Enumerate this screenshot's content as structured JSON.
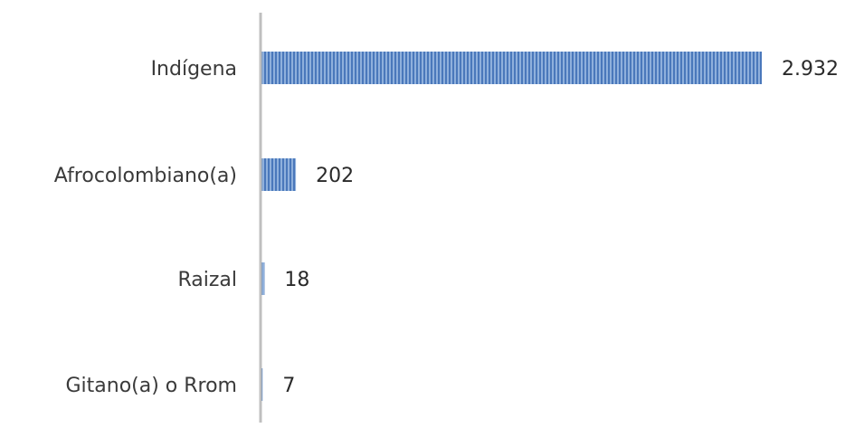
{
  "chart_data": {
    "type": "bar",
    "orientation": "horizontal",
    "categories": [
      "Indígena",
      "Afrocolombiano(a)",
      "Raizal",
      "Gitano(a) o Rrom"
    ],
    "values": [
      2932,
      202,
      18,
      7
    ],
    "value_labels": [
      "2.932",
      "202",
      "18",
      "7"
    ],
    "xlim": [
      0,
      3000
    ],
    "grid": false,
    "legend": "none",
    "colors": {
      "bar_fill": "#8fb0dc",
      "bar_stripe": "#4a78bb",
      "axis": "#bfbfbf"
    }
  }
}
